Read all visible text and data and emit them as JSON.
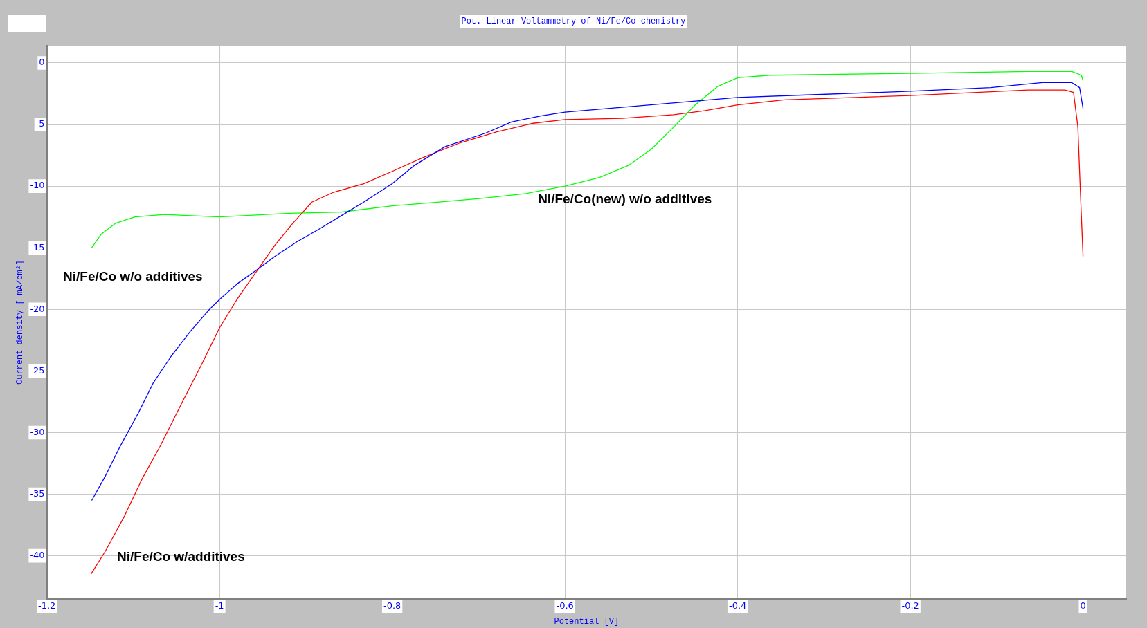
{
  "chart_data": {
    "type": "line",
    "title": "Pot. Linear Voltammetry of Ni/Fe/Co chemistry",
    "xlabel": "Potential [V]",
    "ylabel": "Current density [ mA/cm²]",
    "xlim": [
      -1.2,
      0.05
    ],
    "xticks": [
      -1.2,
      -1,
      -0.8,
      -0.6,
      -0.4,
      -0.2,
      0
    ],
    "ylim": [
      -43.5,
      1.4
    ],
    "yticks": [
      0,
      -5,
      -10,
      -15,
      -20,
      -25,
      -30,
      -35,
      -40
    ],
    "grid": true,
    "legend": false,
    "marker": "none",
    "line_style": "solid",
    "series": [
      {
        "color": "#0000ff",
        "x": [
          -1.148,
          -1.132,
          -1.115,
          -1.094,
          -1.077,
          -1.056,
          -1.034,
          -1.013,
          -1.0,
          -0.979,
          -0.957,
          -0.936,
          -0.91,
          -0.885,
          -0.859,
          -0.833,
          -0.8,
          -0.774,
          -0.739,
          -0.692,
          -0.662,
          -0.628,
          -0.6,
          -0.534,
          -0.449,
          -0.4,
          -0.32,
          -0.2,
          -0.107,
          -0.047,
          -0.013,
          -0.004,
          0
        ],
        "values": [
          -35.5,
          -33.5,
          -31.1,
          -28.4,
          -26.0,
          -23.8,
          -21.8,
          -20.1,
          -19.2,
          -17.9,
          -16.8,
          -15.7,
          -14.5,
          -13.5,
          -12.4,
          -11.3,
          -9.8,
          -8.3,
          -6.8,
          -5.7,
          -4.8,
          -4.3,
          -4.0,
          -3.6,
          -3.1,
          -2.8,
          -2.6,
          -2.3,
          -2.0,
          -1.6,
          -1.6,
          -2.0,
          -3.7
        ]
      },
      {
        "color": "#ff0000",
        "x": [
          -1.149,
          -1.132,
          -1.111,
          -1.09,
          -1.068,
          -1.043,
          -1.021,
          -1.0,
          -0.979,
          -0.957,
          -0.936,
          -0.915,
          -0.893,
          -0.868,
          -0.833,
          -0.8,
          -0.765,
          -0.722,
          -0.679,
          -0.637,
          -0.6,
          -0.534,
          -0.474,
          -0.44,
          -0.4,
          -0.346,
          -0.2,
          -0.064,
          -0.021,
          -0.011,
          -0.006,
          -0.003,
          0
        ],
        "values": [
          -41.5,
          -39.6,
          -36.9,
          -33.8,
          -31.0,
          -27.5,
          -24.5,
          -21.5,
          -19.1,
          -16.9,
          -14.8,
          -13.0,
          -11.3,
          -10.5,
          -9.8,
          -8.8,
          -7.7,
          -6.5,
          -5.6,
          -4.9,
          -4.6,
          -4.5,
          -4.2,
          -3.9,
          -3.4,
          -3.0,
          -2.65,
          -2.2,
          -2.2,
          -2.4,
          -5.2,
          -10.6,
          -15.7
        ]
      },
      {
        "color": "#00ff00",
        "x": [
          -1.148,
          -1.137,
          -1.12,
          -1.098,
          -1.064,
          -1.0,
          -0.919,
          -0.859,
          -0.8,
          -0.748,
          -0.697,
          -0.645,
          -0.6,
          -0.56,
          -0.526,
          -0.5,
          -0.474,
          -0.449,
          -0.423,
          -0.4,
          -0.363,
          -0.2,
          -0.064,
          -0.013,
          -0.002,
          0
        ],
        "values": [
          -15.0,
          -13.9,
          -13.0,
          -12.5,
          -12.3,
          -12.5,
          -12.2,
          -12.1,
          -11.6,
          -11.3,
          -11.0,
          -10.6,
          -10.0,
          -9.3,
          -8.3,
          -7.0,
          -5.2,
          -3.4,
          -1.9,
          -1.2,
          -1.0,
          -0.85,
          -0.7,
          -0.7,
          -1.0,
          -1.45
        ]
      }
    ],
    "annotations": [
      "Ni/Fe/Co w/o additives",
      "Ni/Fe/Co(new) w/o additives",
      "Ni/Fe/Co w/additives"
    ]
  }
}
